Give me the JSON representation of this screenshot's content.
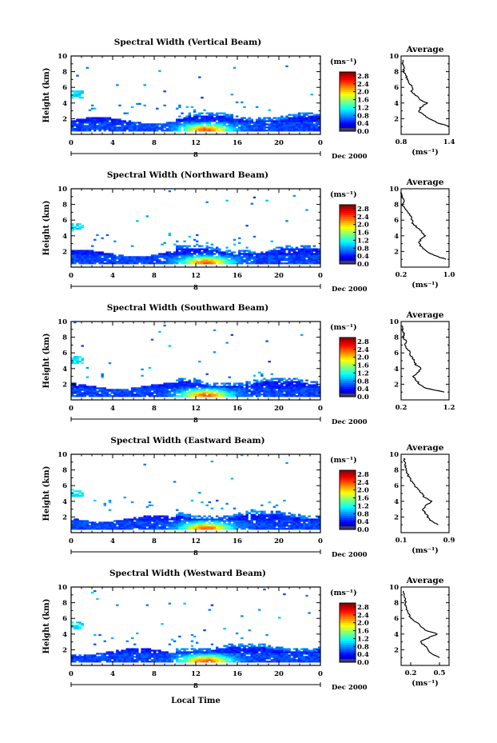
{
  "chart_data": [
    {
      "type": "heatmap",
      "title": "Spectral Width (Vertical Beam)",
      "ylabel": "Height (km)",
      "xlim": [
        0,
        24
      ],
      "ylim": [
        0,
        10
      ],
      "x_ticks": [
        "0",
        "4",
        "8",
        "12",
        "16",
        "20",
        "0"
      ],
      "y_ticks": [
        "2",
        "4",
        "6",
        "8",
        "10"
      ],
      "date_label": "Dec 2000",
      "day_marker": "8",
      "colorbar": {
        "unit": "(ms⁻¹)",
        "ticks": [
          "0.0",
          "0.4",
          "0.8",
          "1.2",
          "1.6",
          "2.0",
          "2.4",
          "2.8"
        ],
        "min": 0.0,
        "max": 3.0
      },
      "profile": {
        "title": "Average",
        "xlabel": "(ms⁻¹)",
        "xlim": [
          0.8,
          1.4
        ],
        "x_ticks": [
          "0.8",
          "1.4"
        ],
        "y_ticks": [
          "2",
          "4",
          "6",
          "8",
          "10"
        ],
        "heights": [
          1.0,
          1.5,
          2.0,
          2.5,
          3.0,
          3.5,
          4.0,
          4.5,
          5.0,
          5.5,
          6.0,
          6.5,
          7.0,
          7.5,
          8.0,
          8.5,
          9.0,
          9.5
        ],
        "values": [
          1.4,
          1.25,
          1.15,
          1.08,
          1.02,
          1.05,
          1.12,
          1.03,
          0.98,
          0.93,
          0.95,
          0.9,
          0.88,
          0.86,
          0.83,
          0.84,
          0.82,
          0.82
        ]
      }
    },
    {
      "type": "heatmap",
      "title": "Spectral Width (Northward Beam)",
      "ylabel": "Height (km)",
      "xlim": [
        0,
        24
      ],
      "ylim": [
        0,
        10
      ],
      "x_ticks": [
        "0",
        "4",
        "8",
        "12",
        "16",
        "20",
        "0"
      ],
      "y_ticks": [
        "2",
        "4",
        "6",
        "8",
        "10"
      ],
      "date_label": "Dec 2000",
      "day_marker": "8",
      "colorbar": {
        "unit": "(ms⁻¹)",
        "ticks": [
          "0.0",
          "0.4",
          "0.8",
          "1.2",
          "1.6",
          "2.0",
          "2.4",
          "2.8"
        ],
        "min": 0.0,
        "max": 3.0
      },
      "profile": {
        "title": "Average",
        "xlabel": "(ms⁻¹)",
        "xlim": [
          0.2,
          1.0
        ],
        "x_ticks": [
          "0.2",
          "1.0"
        ],
        "y_ticks": [
          "2",
          "4",
          "6",
          "8",
          "10"
        ],
        "heights": [
          1.0,
          1.5,
          2.0,
          2.5,
          3.0,
          3.5,
          4.0,
          4.5,
          5.0,
          5.5,
          6.0,
          6.5,
          7.0,
          7.5,
          8.0,
          8.5,
          9.0,
          9.5
        ],
        "values": [
          0.95,
          0.75,
          0.62,
          0.55,
          0.5,
          0.52,
          0.6,
          0.55,
          0.48,
          0.4,
          0.38,
          0.36,
          0.3,
          0.26,
          0.22,
          0.25,
          0.21,
          0.2
        ]
      }
    },
    {
      "type": "heatmap",
      "title": "Spectral Width (Southward Beam)",
      "ylabel": "Height (km)",
      "xlim": [
        0,
        24
      ],
      "ylim": [
        0,
        10
      ],
      "x_ticks": [
        "0",
        "4",
        "8",
        "12",
        "16",
        "20",
        "0"
      ],
      "y_ticks": [
        "2",
        "4",
        "6",
        "8",
        "10"
      ],
      "date_label": "Dec 2000",
      "day_marker": "8",
      "colorbar": {
        "unit": "(ms⁻¹)",
        "ticks": [
          "0.0",
          "0.4",
          "0.8",
          "1.2",
          "1.6",
          "2.0",
          "2.4",
          "2.8"
        ],
        "min": 0.0,
        "max": 3.0
      },
      "profile": {
        "title": "Average",
        "xlabel": "",
        "xlim": [
          0.2,
          1.2
        ],
        "x_ticks": [
          "0.2",
          "1.2"
        ],
        "y_ticks": [
          "2",
          "4",
          "6",
          "8",
          "10"
        ],
        "heights": [
          1.0,
          1.5,
          2.0,
          2.5,
          3.0,
          3.5,
          4.0,
          4.5,
          5.0,
          5.5,
          6.0,
          6.5,
          7.0,
          7.5,
          8.0,
          8.5,
          9.0,
          9.5
        ],
        "values": [
          1.1,
          0.72,
          0.58,
          0.52,
          0.45,
          0.55,
          0.62,
          0.5,
          0.48,
          0.42,
          0.38,
          0.34,
          0.28,
          0.3,
          0.24,
          0.26,
          0.22,
          0.21
        ]
      }
    },
    {
      "type": "heatmap",
      "title": "Spectral Width (Eastward Beam)",
      "ylabel": "Height (km)",
      "xlim": [
        0,
        24
      ],
      "ylim": [
        0,
        10
      ],
      "x_ticks": [
        "0",
        "4",
        "8",
        "12",
        "16",
        "20",
        "0"
      ],
      "y_ticks": [
        "2",
        "4",
        "6",
        "8",
        "10"
      ],
      "date_label": "Dec 2000",
      "day_marker": "8",
      "colorbar": {
        "unit": "(ms⁻¹)",
        "ticks": [
          "0.0",
          "0.4",
          "0.8",
          "1.2",
          "1.6",
          "2.0",
          "2.4",
          "2.8"
        ],
        "min": 0.0,
        "max": 3.0
      },
      "profile": {
        "title": "Average",
        "xlabel": "(ms⁻¹)",
        "xlim": [
          0.1,
          0.9
        ],
        "x_ticks": [
          "0.1",
          "0.9"
        ],
        "y_ticks": [
          "2",
          "4",
          "6",
          "8",
          "10"
        ],
        "heights": [
          1.0,
          1.5,
          2.0,
          2.5,
          3.0,
          3.5,
          4.0,
          4.5,
          5.0,
          5.5,
          6.0,
          6.5,
          7.0,
          7.5,
          8.0,
          8.5,
          9.0,
          9.5
        ],
        "values": [
          0.72,
          0.6,
          0.55,
          0.5,
          0.45,
          0.52,
          0.62,
          0.48,
          0.45,
          0.38,
          0.32,
          0.28,
          0.24,
          0.2,
          0.18,
          0.17,
          0.16,
          0.15
        ]
      }
    },
    {
      "type": "heatmap",
      "title": "Spectral Width (Westward Beam)",
      "ylabel": "Height (km)",
      "xlim": [
        0,
        24
      ],
      "ylim": [
        0,
        10
      ],
      "x_ticks": [
        "0",
        "4",
        "8",
        "12",
        "16",
        "20",
        "0"
      ],
      "y_ticks": [
        "2",
        "4",
        "6",
        "8",
        "10"
      ],
      "date_label": "Dec 2000",
      "day_marker": "8",
      "colorbar": {
        "unit": "(ms⁻¹)",
        "ticks": [
          "0.0",
          "0.4",
          "0.8",
          "1.2",
          "1.6",
          "2.0",
          "2.4",
          "2.8"
        ],
        "min": 0.0,
        "max": 3.0
      },
      "profile": {
        "title": "Average",
        "xlabel": "(ms⁻¹)",
        "xlim": [
          0.1,
          0.6
        ],
        "x_ticks": [
          "0.2",
          "0.5"
        ],
        "y_ticks": [
          "2",
          "4",
          "6",
          "8",
          "10"
        ],
        "heights": [
          1.0,
          1.5,
          2.0,
          2.5,
          3.0,
          3.5,
          4.0,
          4.5,
          5.0,
          5.5,
          6.0,
          6.5,
          7.0,
          7.5,
          8.0,
          8.5,
          9.0,
          9.5
        ],
        "values": [
          0.5,
          0.42,
          0.38,
          0.35,
          0.3,
          0.38,
          0.48,
          0.35,
          0.3,
          0.26,
          0.2,
          0.18,
          0.16,
          0.15,
          0.14,
          0.15,
          0.13,
          0.13
        ]
      }
    }
  ],
  "xlabel": "Local Time"
}
